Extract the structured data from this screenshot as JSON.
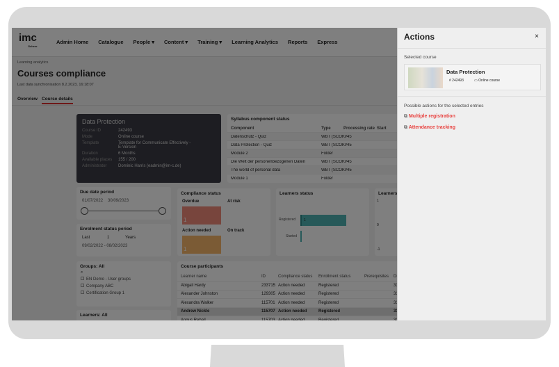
{
  "nav": {
    "logo": "imc",
    "logo_sub": "Scheer",
    "items": [
      "Admin Home",
      "Catalogue",
      "People ▾",
      "Content ▾",
      "Training ▾",
      "Learning Analytics",
      "Reports",
      "Express"
    ]
  },
  "header": {
    "breadcrumb": "Learning analytics",
    "title": "Courses compliance",
    "sync": "Last data synchronisation 8.2.2023, 16:18:07",
    "tabs": [
      "Overview",
      "Course details"
    ],
    "active_tab": "Course details"
  },
  "course_card": {
    "title": "Data Protection",
    "fields": [
      [
        "Course ID",
        "242493"
      ],
      [
        "Mode",
        "Online course"
      ],
      [
        "Template",
        "Template for Communicate Effectively - E-Version"
      ],
      [
        "Duration",
        "6 Months"
      ],
      [
        "Available places",
        "155 / 200"
      ],
      [
        "Administrator",
        "Dominic Harris (eadmin@im-c.de)"
      ]
    ]
  },
  "syllabus": {
    "title": "Syllabus component status",
    "columns": [
      "Component",
      "Type",
      "Processing rate",
      "Start"
    ],
    "rows": [
      [
        "Datenschutz - Quiz",
        "WBT (SCORM)",
        "0/45"
      ],
      [
        "Data Protection - Quiz",
        "WBT (SCORM)",
        "0/45"
      ],
      [
        "Module 2",
        "Folder",
        ""
      ],
      [
        "Die Welt der personenbezogenen Daten",
        "WBT (SCORM)",
        "0/45"
      ],
      [
        "The world of personal data",
        "WBT (SCORM)",
        "0/45"
      ],
      [
        "Module 1",
        "Folder",
        ""
      ]
    ]
  },
  "due_date": {
    "title": "Due date period",
    "from": "01/07/2022",
    "to": "30/09/2023"
  },
  "enrolment": {
    "title": "Enrolment status period",
    "mode": "Last",
    "count": "1",
    "unit": "Years",
    "range": "09/02/2022 - 08/02/2023"
  },
  "compliance": {
    "title": "Compliance status",
    "tiles": [
      {
        "label": "Overdue",
        "value": "1",
        "color": "#f08a7a"
      },
      {
        "label": "At risk",
        "value": ""
      },
      {
        "label": "Action needed",
        "value": "1",
        "color": "#f7b66a"
      },
      {
        "label": "On track",
        "value": ""
      }
    ]
  },
  "learners_status": {
    "title": "Learners status",
    "bars": [
      {
        "label": "Registered",
        "value": 1
      },
      {
        "label": "Started",
        "value": 0
      }
    ],
    "color": "#4fb3b3"
  },
  "learners2": {
    "title": "Learners",
    "ticks": [
      "1",
      "0",
      "-1"
    ]
  },
  "groups": {
    "title": "Groups: All",
    "items": [
      "EN Demo - User groups",
      "Company ABC",
      "Certification Group 1"
    ]
  },
  "learners_filter": {
    "title": "Learners: All"
  },
  "participants": {
    "title": "Course participants",
    "columns": [
      "Learner name",
      "ID",
      "Compliance status",
      "Enrollment status",
      "Prerequisites",
      "Du"
    ],
    "rows": [
      [
        "Abigail Hardy",
        "233715",
        "Action needed",
        "Registered",
        "",
        "31"
      ],
      [
        "Alexander Johnston",
        "129305",
        "Action needed",
        "Registered",
        "",
        "31"
      ],
      [
        "Alexandra Walker",
        "115701",
        "Action needed",
        "Registered",
        "",
        "31"
      ],
      [
        "Andrew Nickle",
        "115707",
        "Action needed",
        "Registered",
        "",
        "31"
      ],
      [
        "Angus Reball",
        "115703",
        "Action needed",
        "Registered",
        "",
        "31"
      ]
    ]
  },
  "actions": {
    "title": "Actions",
    "close": "×",
    "selected_label": "Selected course",
    "course_title": "Data Protection",
    "course_id": "242493",
    "course_mode": "Online course",
    "possible_label": "Possible actions for the selected entries",
    "links": [
      "Multiple registration",
      "Attendance tracking"
    ],
    "link_color": "#e8423f"
  }
}
